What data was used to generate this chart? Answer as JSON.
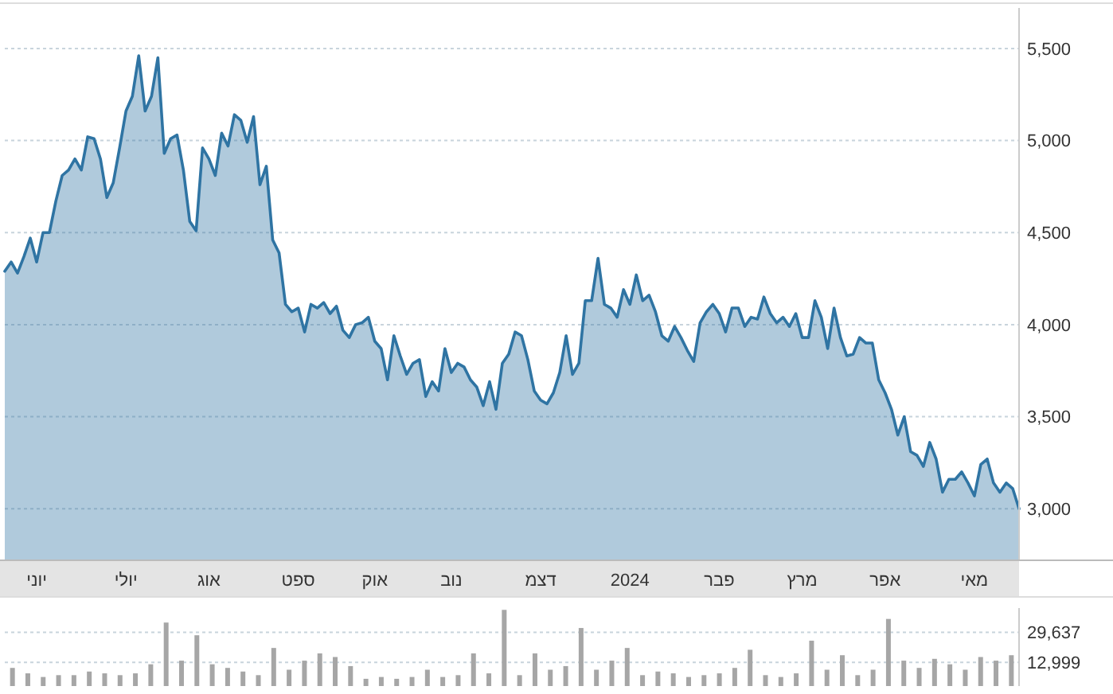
{
  "chart_data": [
    {
      "type": "area",
      "categories": [
        null,
        null,
        null,
        null,
        null,
        "יוני",
        null,
        null,
        null,
        null,
        null,
        null,
        null,
        null,
        null,
        null,
        null,
        null,
        null,
        "יולי",
        null,
        null,
        null,
        null,
        null,
        null,
        null,
        null,
        null,
        null,
        null,
        null,
        "אוג",
        null,
        null,
        null,
        null,
        null,
        null,
        null,
        null,
        null,
        null,
        null,
        null,
        null,
        "ספט",
        null,
        null,
        null,
        null,
        null,
        null,
        null,
        null,
        null,
        null,
        null,
        "אוק",
        null,
        null,
        null,
        null,
        null,
        null,
        null,
        null,
        null,
        null,
        null,
        "נוב",
        null,
        null,
        null,
        null,
        null,
        null,
        null,
        null,
        null,
        null,
        null,
        null,
        null,
        "דצמ",
        null,
        null,
        null,
        null,
        null,
        null,
        null,
        null,
        null,
        null,
        null,
        null,
        null,
        "2024",
        null,
        null,
        null,
        null,
        null,
        null,
        null,
        null,
        null,
        null,
        null,
        null,
        null,
        "פבר",
        null,
        null,
        null,
        null,
        null,
        null,
        null,
        null,
        null,
        null,
        null,
        null,
        "מרץ",
        null,
        null,
        null,
        null,
        null,
        null,
        null,
        null,
        null,
        null,
        null,
        null,
        "אפר",
        null,
        null,
        null,
        null,
        null,
        null,
        null,
        null,
        null,
        null,
        null,
        null,
        null,
        "מאי",
        null,
        null,
        null,
        null,
        null,
        null,
        null
      ],
      "ylim": [
        2720,
        5720
      ],
      "yticks": [
        {
          "value": 3000,
          "label": "3,000"
        },
        {
          "value": 3500,
          "label": "3,500"
        },
        {
          "value": 4000,
          "label": "4,000"
        },
        {
          "value": 4500,
          "label": "4,500"
        },
        {
          "value": 5000,
          "label": "5,000"
        },
        {
          "value": 5500,
          "label": "5,500"
        }
      ],
      "grid": "y",
      "series": [
        {
          "color": "#2f74a3",
          "values": [
            4290,
            4340,
            4280,
            4370,
            4470,
            4340,
            4500,
            4500,
            4670,
            4810,
            4840,
            4900,
            4840,
            5020,
            5010,
            4900,
            4690,
            4770,
            4960,
            5160,
            5240,
            5460,
            5160,
            5240,
            5450,
            4930,
            5010,
            5030,
            4840,
            4560,
            4510,
            4960,
            4900,
            4810,
            5040,
            4970,
            5140,
            5110,
            4990,
            5130,
            4760,
            4860,
            4460,
            4390,
            4110,
            4070,
            4090,
            3960,
            4110,
            4090,
            4120,
            4060,
            4100,
            3970,
            3930,
            4000,
            4010,
            4040,
            3910,
            3870,
            3700,
            3940,
            3830,
            3730,
            3790,
            3810,
            3610,
            3690,
            3640,
            3870,
            3740,
            3790,
            3770,
            3700,
            3660,
            3560,
            3690,
            3540,
            3790,
            3840,
            3960,
            3940,
            3810,
            3640,
            3590,
            3570,
            3630,
            3740,
            3940,
            3730,
            3790,
            4130,
            4130,
            4360,
            4110,
            4090,
            4040,
            4190,
            4110,
            4270,
            4130,
            4160,
            4070,
            3940,
            3910,
            3990,
            3930,
            3860,
            3800,
            4010,
            4070,
            4110,
            4060,
            3960,
            4090,
            4090,
            3990,
            4040,
            4030,
            4150,
            4060,
            4010,
            4040,
            3990,
            4060,
            3930,
            3930,
            4130,
            4040,
            3870,
            4090,
            3930,
            3830,
            3840,
            3930,
            3900,
            3900,
            3700,
            3630,
            3540,
            3400,
            3500,
            3310,
            3290,
            3230,
            3360,
            3270,
            3090,
            3160,
            3160,
            3200,
            3140,
            3070,
            3240,
            3270,
            3140,
            3090,
            3140,
            3110,
            3000
          ]
        }
      ]
    },
    {
      "type": "bar",
      "tick_labels": "y",
      "categories": [
        null,
        null,
        null,
        null,
        null,
        null,
        null,
        null,
        null,
        null,
        null,
        null,
        null,
        null,
        null,
        null,
        null,
        null,
        null,
        null,
        null,
        null,
        null,
        null,
        null,
        null,
        null,
        null,
        null,
        null,
        null,
        null,
        null,
        null,
        null,
        null,
        null,
        null,
        null,
        null,
        null,
        null,
        null,
        null,
        null,
        null,
        null,
        null,
        null,
        null,
        null,
        null,
        null,
        null,
        null,
        null,
        null,
        null,
        null,
        null,
        null,
        null,
        null,
        null,
        null,
        null
      ],
      "ylim": [
        0,
        43000
      ],
      "yticks": [
        {
          "value": 12999,
          "label": "12,999"
        },
        {
          "value": 29637,
          "label": "29,637"
        }
      ],
      "grid": "y",
      "series": [
        {
          "color": "#a6a6a6",
          "values": [
            10000,
            7000,
            5000,
            6000,
            6000,
            8000,
            7000,
            6000,
            7000,
            12000,
            35000,
            14000,
            28000,
            12000,
            10000,
            8000,
            6000,
            21000,
            9000,
            14000,
            18000,
            16000,
            11000,
            4000,
            5000,
            4000,
            5000,
            9000,
            5000,
            6000,
            18000,
            7000,
            42000,
            6000,
            18000,
            9000,
            11000,
            32000,
            9000,
            14000,
            21000,
            6000,
            8000,
            7000,
            5000,
            6000,
            7000,
            10000,
            20000,
            6000,
            5000,
            7000,
            25000,
            9000,
            17000,
            6000,
            9000,
            37000,
            14000,
            10000,
            15000,
            12000,
            9000,
            16000,
            14000,
            17000
          ]
        }
      ]
    }
  ]
}
